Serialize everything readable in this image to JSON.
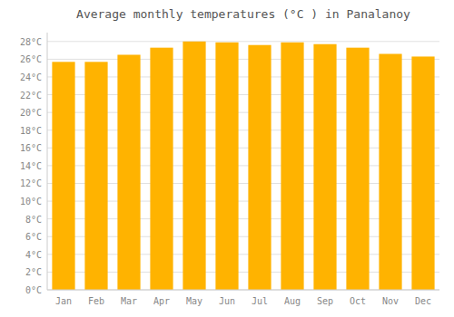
{
  "chart_data": {
    "type": "bar",
    "title": "Average monthly temperatures (°C ) in Panalanoy",
    "categories": [
      "Jan",
      "Feb",
      "Mar",
      "Apr",
      "May",
      "Jun",
      "Jul",
      "Aug",
      "Sep",
      "Oct",
      "Nov",
      "Dec"
    ],
    "values": [
      25.7,
      25.7,
      26.5,
      27.3,
      28.0,
      27.9,
      27.6,
      27.9,
      27.7,
      27.3,
      26.6,
      26.3
    ],
    "color": "#FFB300",
    "ylim": [
      0,
      29
    ],
    "yticks": [
      {
        "value": 0,
        "label": "0°C"
      },
      {
        "value": 2,
        "label": "2°C"
      },
      {
        "value": 4,
        "label": "4°C"
      },
      {
        "value": 6,
        "label": "6°C"
      },
      {
        "value": 8,
        "label": "8°C"
      },
      {
        "value": 10,
        "label": "10°C"
      },
      {
        "value": 12,
        "label": "12°C"
      },
      {
        "value": 14,
        "label": "14°C"
      },
      {
        "value": 16,
        "label": "16°C"
      },
      {
        "value": 18,
        "label": "18°C"
      },
      {
        "value": 20,
        "label": "20°C"
      },
      {
        "value": 22,
        "label": "22°C"
      },
      {
        "value": 24,
        "label": "24°C"
      },
      {
        "value": 26,
        "label": "26°C"
      },
      {
        "value": 28,
        "label": "28°C"
      }
    ],
    "grid": true
  }
}
